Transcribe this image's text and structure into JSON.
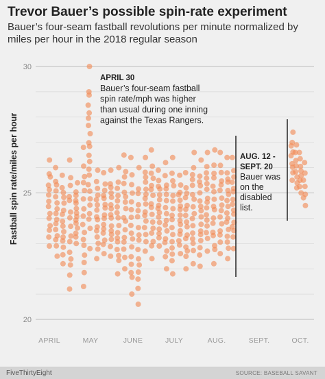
{
  "title": "Trevor Bauer’s possible spin-rate experiment",
  "subtitle": "Bauer’s four-seam fastball revolutions per minute normalized by miles per hour in the 2018 regular season",
  "footer": {
    "brand": "FiveThirtyEight",
    "source": "SOURCE: BASEBALL SAVANT"
  },
  "colors": {
    "background": "#f0f0f0",
    "point": "#f28a55",
    "grid": "#d8d8d8",
    "annotation_line": "#222222",
    "footer_bg": "#d4d4d4"
  },
  "annotations": [
    {
      "name": "april-30",
      "heading": "APRIL 30",
      "lines": [
        "Bauer’s four-seam fastball",
        "spin rate/mph was higher",
        "than usual during one inning",
        "against the Texas Rangers."
      ]
    },
    {
      "name": "aug-sept",
      "heading": "AUG. 12 -",
      "heading2": "SEPT. 20",
      "lines": [
        "Bauer was",
        "on the",
        "disabled",
        "list."
      ]
    }
  ],
  "chart_data": {
    "type": "scatter",
    "ylabel": "Fastball spin rate/miles per hour",
    "xlabel": "",
    "ylim": [
      20,
      30
    ],
    "yticks": [
      20,
      25,
      30
    ],
    "xticks": [
      "APRIL",
      "MAY",
      "JUNE",
      "JULY",
      "AUG.",
      "SEPT.",
      "OCT."
    ],
    "grid": true,
    "disabled_list_period": [
      "AUG. 12",
      "SEPT. 20"
    ],
    "games": [
      {
        "day": 0,
        "range": [
          22.9,
          26.3
        ],
        "n": 14
      },
      {
        "day": 5,
        "range": [
          22.5,
          26.0
        ],
        "n": 15
      },
      {
        "day": 10,
        "range": [
          22.2,
          25.7
        ],
        "n": 15
      },
      {
        "day": 15,
        "range": [
          21.2,
          26.3
        ],
        "n": 15
      },
      {
        "day": 20,
        "range": [
          23.0,
          25.4
        ],
        "n": 14
      },
      {
        "day": 25,
        "range": [
          21.3,
          26.8
        ],
        "n": 16
      },
      {
        "day": 29,
        "range": [
          22.8,
          30.0
        ],
        "n": 22
      },
      {
        "day": 35,
        "range": [
          22.4,
          25.9
        ],
        "n": 15
      },
      {
        "day": 40,
        "range": [
          22.6,
          25.8
        ],
        "n": 15
      },
      {
        "day": 45,
        "range": [
          22.5,
          25.9
        ],
        "n": 15
      },
      {
        "day": 50,
        "range": [
          21.8,
          26.0
        ],
        "n": 16
      },
      {
        "day": 55,
        "range": [
          22.0,
          26.5
        ],
        "n": 16
      },
      {
        "day": 60,
        "range": [
          21.0,
          26.4
        ],
        "n": 16
      },
      {
        "day": 65,
        "range": [
          20.6,
          26.0
        ],
        "n": 16
      },
      {
        "day": 70,
        "range": [
          22.7,
          26.4
        ],
        "n": 15
      },
      {
        "day": 75,
        "range": [
          22.4,
          26.7
        ],
        "n": 16
      },
      {
        "day": 80,
        "range": [
          22.9,
          25.9
        ],
        "n": 15
      },
      {
        "day": 85,
        "range": [
          22.0,
          26.2
        ],
        "n": 16
      },
      {
        "day": 90,
        "range": [
          21.8,
          26.4
        ],
        "n": 16
      },
      {
        "day": 95,
        "range": [
          22.6,
          25.7
        ],
        "n": 15
      },
      {
        "day": 100,
        "range": [
          22.0,
          25.8
        ],
        "n": 15
      },
      {
        "day": 105,
        "range": [
          22.2,
          26.6
        ],
        "n": 16
      },
      {
        "day": 110,
        "range": [
          22.1,
          26.3
        ],
        "n": 16
      },
      {
        "day": 115,
        "range": [
          22.7,
          26.6
        ],
        "n": 15
      },
      {
        "day": 120,
        "range": [
          22.2,
          26.7
        ],
        "n": 16
      },
      {
        "day": 125,
        "range": [
          22.6,
          26.6
        ],
        "n": 15
      },
      {
        "day": 130,
        "range": [
          22.4,
          26.4
        ],
        "n": 16
      },
      {
        "day": 134,
        "range": [
          22.8,
          26.4
        ],
        "n": 15
      },
      {
        "day": 177,
        "range": [
          25.5,
          27.4
        ],
        "n": 9
      },
      {
        "day": 180,
        "range": [
          25.2,
          26.9
        ],
        "n": 8
      },
      {
        "day": 183,
        "range": [
          25.0,
          26.6
        ],
        "n": 8
      },
      {
        "day": 186,
        "range": [
          24.5,
          26.2
        ],
        "n": 7
      }
    ]
  }
}
